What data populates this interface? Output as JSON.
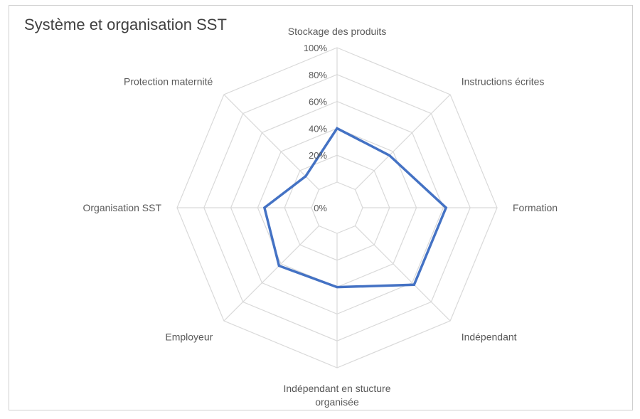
{
  "chart_data": {
    "type": "radar",
    "title": "Système et organisation SST",
    "categories": [
      "Stockage des produits",
      "Instructions écrites",
      "Formation",
      "Indépendant",
      "Indépendant en stucture organisée",
      "Employeur",
      "Organisation SST",
      "Protection maternité"
    ],
    "tick_labels": [
      "0%",
      "20%",
      "40%",
      "60%",
      "80%",
      "100%"
    ],
    "rlim": [
      0,
      1
    ],
    "grid": true,
    "legend": "none",
    "series": [
      {
        "values": [
          0.4,
          0.36,
          0.62,
          0.62,
          0.4,
          0.42,
          0.35,
          0.14
        ],
        "color": "#4472C4"
      }
    ],
    "colors": {
      "grid": "#d9d9d9",
      "text": "#595959",
      "title": "#404040",
      "border": "#cfcfcf"
    }
  }
}
